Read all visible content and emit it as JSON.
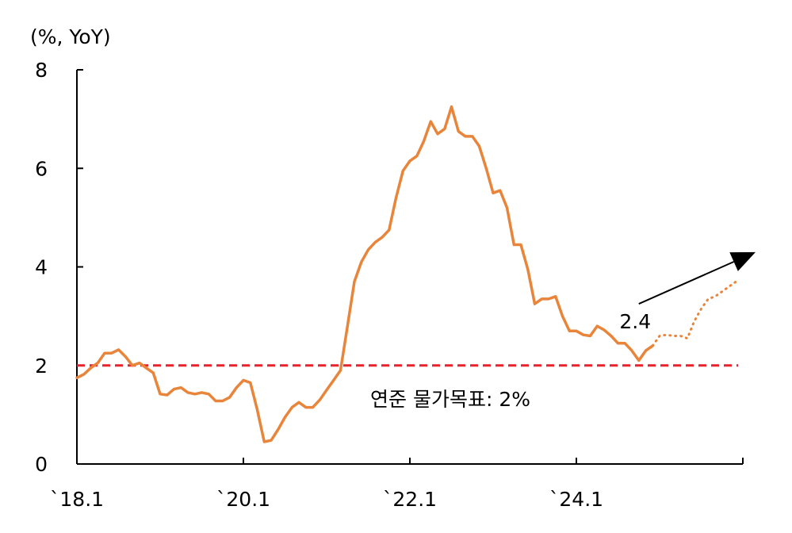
{
  "chart_data": {
    "type": "line",
    "unit_label": "(%, YoY)",
    "ylim": [
      0,
      8
    ],
    "y_ticks": [
      "0",
      "2",
      "4",
      "6",
      "8"
    ],
    "x_ticks": [
      {
        "label": "`18.1",
        "date": "2018-01"
      },
      {
        "label": "`20.1",
        "date": "2020-01"
      },
      {
        "label": "`22.1",
        "date": "2022-01"
      },
      {
        "label": "`24.1",
        "date": "2024-01"
      }
    ],
    "x_range": [
      "2018-01",
      "2026-01"
    ],
    "series": [
      {
        "style": "solid",
        "color": "#E8853A",
        "points": [
          [
            "2018-01",
            1.75
          ],
          [
            "2018-02",
            1.82
          ],
          [
            "2018-03",
            1.95
          ],
          [
            "2018-04",
            2.05
          ],
          [
            "2018-05",
            2.25
          ],
          [
            "2018-06",
            2.25
          ],
          [
            "2018-07",
            2.32
          ],
          [
            "2018-08",
            2.18
          ],
          [
            "2018-09",
            2.0
          ],
          [
            "2018-10",
            2.05
          ],
          [
            "2018-11",
            1.95
          ],
          [
            "2018-12",
            1.85
          ],
          [
            "2019-01",
            1.42
          ],
          [
            "2019-02",
            1.4
          ],
          [
            "2019-03",
            1.52
          ],
          [
            "2019-04",
            1.55
          ],
          [
            "2019-05",
            1.45
          ],
          [
            "2019-06",
            1.42
          ],
          [
            "2019-07",
            1.45
          ],
          [
            "2019-08",
            1.42
          ],
          [
            "2019-09",
            1.28
          ],
          [
            "2019-10",
            1.28
          ],
          [
            "2019-11",
            1.35
          ],
          [
            "2019-12",
            1.55
          ],
          [
            "2020-01",
            1.7
          ],
          [
            "2020-02",
            1.65
          ],
          [
            "2020-03",
            1.1
          ],
          [
            "2020-04",
            0.45
          ],
          [
            "2020-05",
            0.48
          ],
          [
            "2020-06",
            0.7
          ],
          [
            "2020-07",
            0.95
          ],
          [
            "2020-08",
            1.15
          ],
          [
            "2020-09",
            1.25
          ],
          [
            "2020-10",
            1.15
          ],
          [
            "2020-11",
            1.15
          ],
          [
            "2020-12",
            1.3
          ],
          [
            "2021-01",
            1.5
          ],
          [
            "2021-02",
            1.7
          ],
          [
            "2021-03",
            1.9
          ],
          [
            "2021-04",
            2.8
          ],
          [
            "2021-05",
            3.7
          ],
          [
            "2021-06",
            4.1
          ],
          [
            "2021-07",
            4.35
          ],
          [
            "2021-08",
            4.5
          ],
          [
            "2021-09",
            4.6
          ],
          [
            "2021-10",
            4.75
          ],
          [
            "2021-11",
            5.4
          ],
          [
            "2021-12",
            5.95
          ],
          [
            "2022-01",
            6.15
          ],
          [
            "2022-02",
            6.25
          ],
          [
            "2022-03",
            6.55
          ],
          [
            "2022-04",
            6.95
          ],
          [
            "2022-05",
            6.7
          ],
          [
            "2022-06",
            6.8
          ],
          [
            "2022-07",
            7.25
          ],
          [
            "2022-08",
            6.75
          ],
          [
            "2022-09",
            6.65
          ],
          [
            "2022-10",
            6.65
          ],
          [
            "2022-11",
            6.45
          ],
          [
            "2022-12",
            6.0
          ],
          [
            "2023-01",
            5.5
          ],
          [
            "2023-02",
            5.55
          ],
          [
            "2023-03",
            5.2
          ],
          [
            "2023-04",
            4.45
          ],
          [
            "2023-05",
            4.45
          ],
          [
            "2023-06",
            3.95
          ],
          [
            "2023-07",
            3.25
          ],
          [
            "2023-08",
            3.35
          ],
          [
            "2023-09",
            3.35
          ],
          [
            "2023-10",
            3.4
          ],
          [
            "2023-11",
            3.0
          ],
          [
            "2023-12",
            2.7
          ],
          [
            "2024-01",
            2.7
          ],
          [
            "2024-02",
            2.62
          ],
          [
            "2024-03",
            2.6
          ],
          [
            "2024-04",
            2.8
          ],
          [
            "2024-05",
            2.72
          ],
          [
            "2024-06",
            2.6
          ],
          [
            "2024-07",
            2.45
          ],
          [
            "2024-08",
            2.45
          ],
          [
            "2024-09",
            2.3
          ],
          [
            "2024-10",
            2.1
          ],
          [
            "2024-11",
            2.3
          ],
          [
            "2024-12",
            2.4
          ]
        ]
      },
      {
        "style": "dotted",
        "color": "#E8853A",
        "points": [
          [
            "2024-12",
            2.4
          ],
          [
            "2025-01",
            2.6
          ],
          [
            "2025-02",
            2.62
          ],
          [
            "2025-03",
            2.6
          ],
          [
            "2025-04",
            2.6
          ],
          [
            "2025-05",
            2.55
          ],
          [
            "2025-06",
            2.9
          ],
          [
            "2025-07",
            3.15
          ],
          [
            "2025-08",
            3.35
          ],
          [
            "2025-09",
            3.4
          ],
          [
            "2025-10",
            3.5
          ],
          [
            "2025-11",
            3.6
          ],
          [
            "2025-12",
            3.7
          ]
        ]
      }
    ],
    "target_line": {
      "value": 2,
      "color": "#E8222A",
      "label": "연준 물가목표: 2%"
    },
    "annotations": [
      {
        "text": "2.4",
        "date": "2024-12",
        "value": 2.4
      }
    ],
    "arrow": {
      "from": [
        "2024-10",
        3.25
      ],
      "to": [
        "2026-01",
        4.3
      ]
    }
  }
}
